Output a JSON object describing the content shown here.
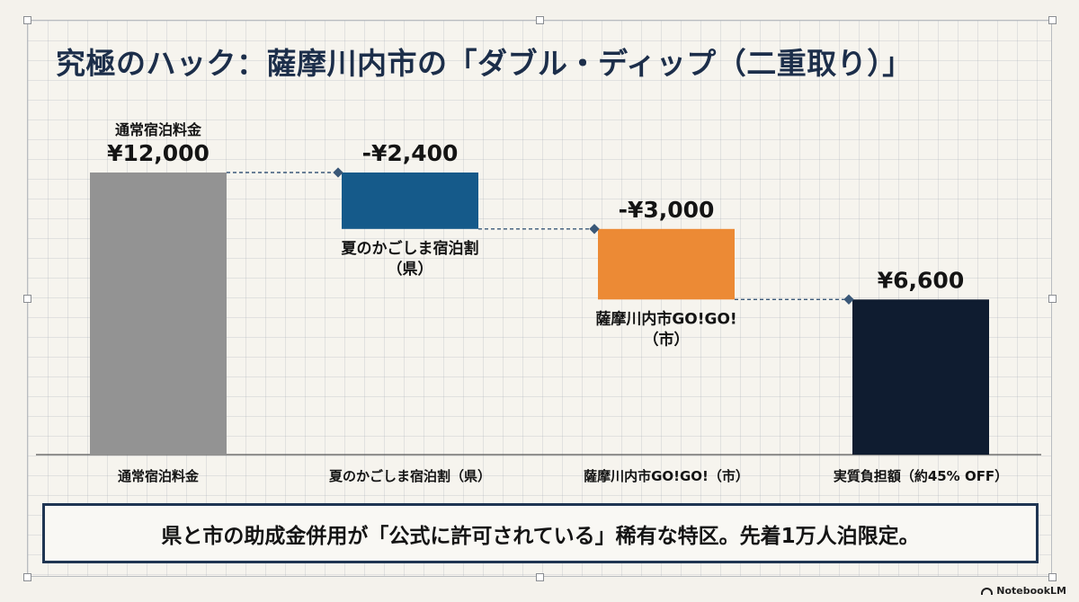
{
  "title": "究極のハック：薩摩川内市の「ダブル・ディップ（二重取り）」",
  "callout": "県と市の助成金併用が「公式に許可されている」稀有な特区。先着1万人泊限定。",
  "brand": "NotebookLM",
  "colors": {
    "total": "#939393",
    "prefecture": "#155a8a",
    "city": "#ec8a35",
    "result": "#0f1c30",
    "connector": "#3a5878",
    "axis": "#555555",
    "title": "#1c2e4a"
  },
  "chart_data": {
    "type": "bar",
    "subtype": "waterfall",
    "categories": [
      "通常宿泊料金",
      "夏のかごしま宿泊割（県）",
      "薩摩川内市GO!GO!（市）",
      "実質負担額（約45% OFF）"
    ],
    "values": [
      12000,
      -2400,
      -3000,
      6600
    ],
    "value_labels": [
      "¥12,000",
      "-¥2,400",
      "-¥3,000",
      "¥6,600"
    ],
    "bar_kinds": [
      "total",
      "prefecture",
      "city",
      "result"
    ],
    "bar_annotations": [
      [
        "通常宿泊料金"
      ],
      [
        "夏のかごしま宿泊割",
        "（県）"
      ],
      [
        "薩摩川内市GO!GO!",
        "（市）"
      ],
      []
    ],
    "ylim": [
      0,
      12000
    ],
    "grid": true,
    "legend": "none"
  }
}
